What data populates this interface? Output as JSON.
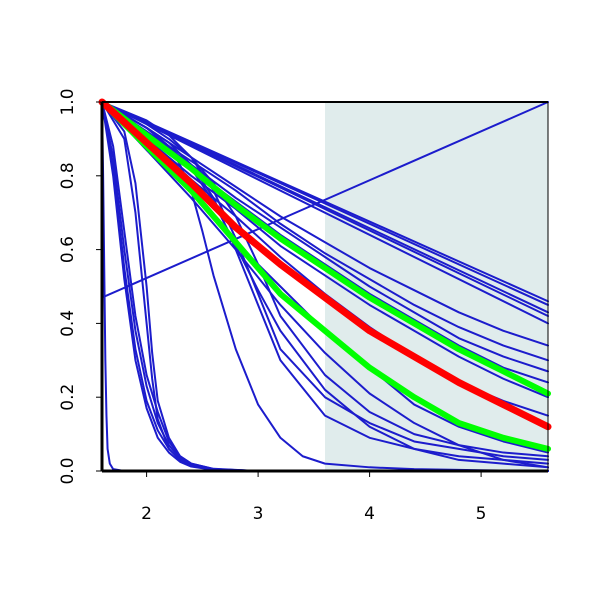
{
  "chart_data": {
    "type": "line",
    "title": "",
    "xlabel": "",
    "ylabel": "",
    "xlim": [
      1.6,
      5.6
    ],
    "ylim": [
      0.0,
      1.0
    ],
    "x_ticks": [
      2,
      3,
      4,
      5
    ],
    "x_tick_labels": [
      "2",
      "3",
      "4",
      "5"
    ],
    "y_ticks": [
      0.0,
      0.2,
      0.4,
      0.6,
      0.8,
      1.0
    ],
    "y_tick_labels": [
      "0.0",
      "0.2",
      "0.4",
      "0.6",
      "0.8",
      "1.0"
    ],
    "grid": false,
    "legend": "none",
    "shaded_region": {
      "x_range": [
        3.6,
        5.6
      ],
      "color": "#e0ecec"
    },
    "colors": {
      "highlight": "#ff0000",
      "bounds": "#00ff00",
      "series": "#1c1ccc",
      "axes": "#000000"
    },
    "series": [
      {
        "role": "highlight",
        "color": "#ff0000",
        "x": [
          1.6,
          2.0,
          2.4,
          2.8,
          3.2,
          3.6,
          4.0,
          4.4,
          4.8,
          5.2,
          5.6
        ],
        "values": [
          1.0,
          0.89,
          0.78,
          0.66,
          0.56,
          0.47,
          0.38,
          0.31,
          0.24,
          0.18,
          0.12
        ]
      },
      {
        "role": "bound",
        "color": "#00ff00",
        "x": [
          1.6,
          2.0,
          2.4,
          2.8,
          3.2,
          3.6,
          4.0,
          4.4,
          4.8,
          5.2,
          5.6
        ],
        "values": [
          1.0,
          0.91,
          0.82,
          0.72,
          0.63,
          0.55,
          0.47,
          0.4,
          0.33,
          0.27,
          0.21
        ]
      },
      {
        "role": "bound",
        "color": "#00ff00",
        "x": [
          1.6,
          2.0,
          2.4,
          2.8,
          3.2,
          3.6,
          4.0,
          4.4,
          4.8,
          5.2,
          5.6
        ],
        "values": [
          1.0,
          0.88,
          0.76,
          0.62,
          0.48,
          0.38,
          0.28,
          0.2,
          0.13,
          0.09,
          0.06
        ]
      },
      {
        "role": "other",
        "x": [
          1.6,
          5.6
        ],
        "values": [
          1.0,
          0.46
        ]
      },
      {
        "role": "other",
        "x": [
          1.6,
          5.6
        ],
        "values": [
          1.0,
          0.45
        ]
      },
      {
        "role": "other",
        "x": [
          1.6,
          5.6
        ],
        "values": [
          1.0,
          0.43
        ]
      },
      {
        "role": "other",
        "x": [
          1.6,
          5.6
        ],
        "values": [
          1.0,
          0.42
        ]
      },
      {
        "role": "other",
        "x": [
          1.6,
          5.6
        ],
        "values": [
          1.0,
          0.4
        ]
      },
      {
        "role": "other",
        "x": [
          1.6,
          2.0,
          2.4,
          2.8,
          3.2,
          3.6,
          4.0,
          4.4,
          4.8,
          5.2,
          5.6
        ],
        "values": [
          1.0,
          0.93,
          0.85,
          0.77,
          0.69,
          0.62,
          0.55,
          0.49,
          0.43,
          0.38,
          0.34
        ]
      },
      {
        "role": "other",
        "x": [
          1.6,
          2.0,
          2.4,
          2.8,
          3.2,
          3.6,
          4.0,
          4.4,
          4.8,
          5.2,
          5.6
        ],
        "values": [
          1.0,
          0.92,
          0.84,
          0.76,
          0.67,
          0.59,
          0.52,
          0.45,
          0.39,
          0.34,
          0.3
        ]
      },
      {
        "role": "other",
        "x": [
          1.6,
          2.0,
          2.4,
          2.8,
          3.2,
          3.6,
          4.0,
          4.4,
          4.8,
          5.2,
          5.6
        ],
        "values": [
          1.0,
          0.92,
          0.83,
          0.74,
          0.66,
          0.58,
          0.5,
          0.43,
          0.36,
          0.31,
          0.27
        ]
      },
      {
        "role": "other",
        "x": [
          1.6,
          2.0,
          2.4,
          2.8,
          3.2,
          3.6,
          4.0,
          4.4,
          4.8,
          5.2,
          5.6
        ],
        "values": [
          1.0,
          0.91,
          0.82,
          0.73,
          0.64,
          0.56,
          0.48,
          0.41,
          0.34,
          0.28,
          0.24
        ]
      },
      {
        "role": "other",
        "x": [
          1.6,
          2.0,
          2.4,
          2.8,
          3.2,
          3.6,
          4.0,
          4.4,
          4.8,
          5.2,
          5.6
        ],
        "values": [
          1.0,
          0.9,
          0.8,
          0.71,
          0.61,
          0.53,
          0.45,
          0.38,
          0.31,
          0.25,
          0.2
        ]
      },
      {
        "role": "other",
        "x": [
          1.6,
          2.0,
          2.4,
          2.8,
          3.2,
          3.6,
          4.0,
          4.4,
          4.8,
          5.2,
          5.6
        ],
        "values": [
          1.0,
          0.9,
          0.79,
          0.69,
          0.58,
          0.48,
          0.39,
          0.31,
          0.24,
          0.19,
          0.15
        ]
      },
      {
        "role": "other",
        "x": [
          1.6,
          2.0,
          2.4,
          2.8,
          3.2,
          3.6,
          4.0,
          4.4,
          4.8,
          5.2,
          5.6
        ],
        "values": [
          1.0,
          0.87,
          0.76,
          0.62,
          0.5,
          0.38,
          0.28,
          0.18,
          0.12,
          0.08,
          0.05
        ]
      },
      {
        "role": "other",
        "x": [
          1.6,
          2.0,
          2.4,
          2.8,
          3.2,
          3.6,
          4.0,
          4.4,
          4.8,
          5.2,
          5.6
        ],
        "values": [
          1.0,
          0.87,
          0.74,
          0.6,
          0.45,
          0.32,
          0.21,
          0.13,
          0.07,
          0.03,
          0.01
        ]
      },
      {
        "role": "other",
        "x": [
          1.6,
          2.0,
          2.2,
          2.4,
          2.6,
          2.8,
          3.0,
          3.2,
          3.6,
          4.0,
          4.4,
          4.8,
          5.2,
          5.6
        ],
        "values": [
          1.0,
          0.93,
          0.89,
          0.83,
          0.74,
          0.6,
          0.45,
          0.3,
          0.15,
          0.09,
          0.06,
          0.04,
          0.03,
          0.02
        ]
      },
      {
        "role": "other",
        "x": [
          1.6,
          2.0,
          2.2,
          2.4,
          2.6,
          2.8,
          3.0,
          3.2,
          3.6,
          4.0,
          4.4,
          4.8,
          5.2,
          5.6
        ],
        "values": [
          1.0,
          0.95,
          0.91,
          0.85,
          0.76,
          0.63,
          0.48,
          0.33,
          0.2,
          0.13,
          0.08,
          0.06,
          0.04,
          0.03
        ]
      },
      {
        "role": "other",
        "x": [
          1.6,
          2.0,
          2.2,
          2.4,
          2.6,
          2.8,
          3.0,
          3.2,
          3.6,
          4.0,
          4.4,
          4.8,
          5.2,
          5.6
        ],
        "values": [
          1.0,
          0.94,
          0.9,
          0.85,
          0.78,
          0.69,
          0.56,
          0.42,
          0.26,
          0.16,
          0.1,
          0.07,
          0.05,
          0.04
        ]
      },
      {
        "role": "other",
        "x": [
          1.6,
          2.0,
          2.2,
          2.4,
          2.6,
          2.8,
          3.0,
          3.2,
          3.6,
          4.0,
          4.4,
          4.8,
          5.2,
          5.6
        ],
        "values": [
          1.0,
          0.93,
          0.88,
          0.82,
          0.73,
          0.61,
          0.49,
          0.38,
          0.22,
          0.12,
          0.06,
          0.03,
          0.02,
          0.01
        ]
      },
      {
        "role": "other",
        "x": [
          1.6,
          2.0,
          2.2,
          2.3,
          2.4,
          2.5,
          2.6,
          2.8,
          3.0,
          3.2,
          3.4,
          3.6,
          4.0,
          4.4,
          5.0,
          5.6
        ],
        "values": [
          1.0,
          0.93,
          0.88,
          0.83,
          0.76,
          0.65,
          0.53,
          0.33,
          0.18,
          0.09,
          0.04,
          0.02,
          0.01,
          0.005,
          0.002,
          0.0
        ]
      },
      {
        "role": "other",
        "x": [
          1.6,
          1.8,
          1.9,
          2.0,
          2.05,
          2.1,
          2.2,
          2.3,
          2.4,
          2.6,
          3.0,
          3.6,
          5.6
        ],
        "values": [
          1.0,
          0.9,
          0.7,
          0.4,
          0.25,
          0.14,
          0.06,
          0.03,
          0.015,
          0.005,
          0.0,
          0.0,
          0.0
        ]
      },
      {
        "role": "other",
        "x": [
          1.6,
          1.8,
          1.9,
          2.0,
          2.05,
          2.1,
          2.2,
          2.3,
          2.4,
          2.6,
          3.0,
          3.6,
          5.6
        ],
        "values": [
          1.0,
          0.92,
          0.78,
          0.5,
          0.32,
          0.19,
          0.09,
          0.04,
          0.02,
          0.006,
          0.0,
          0.0,
          0.0
        ]
      },
      {
        "role": "other",
        "x": [
          1.6,
          1.7,
          1.8,
          1.9,
          2.0,
          2.1,
          2.2,
          2.3,
          2.4,
          2.6,
          3.0,
          3.6,
          5.6
        ],
        "values": [
          1.0,
          0.88,
          0.65,
          0.42,
          0.26,
          0.16,
          0.08,
          0.04,
          0.02,
          0.005,
          0.0,
          0.0,
          0.0
        ]
      },
      {
        "role": "other",
        "x": [
          1.6,
          1.7,
          1.8,
          1.9,
          2.0,
          2.1,
          2.2,
          2.3,
          2.4,
          2.6,
          3.0,
          3.6,
          5.6
        ],
        "values": [
          1.0,
          0.85,
          0.6,
          0.38,
          0.23,
          0.13,
          0.07,
          0.035,
          0.018,
          0.004,
          0.0,
          0.0,
          0.0
        ]
      },
      {
        "role": "other",
        "x": [
          1.6,
          1.7,
          1.8,
          1.9,
          2.0,
          2.1,
          2.2,
          2.3,
          2.4,
          2.6,
          3.0,
          3.6,
          5.6
        ],
        "values": [
          1.0,
          0.82,
          0.55,
          0.33,
          0.19,
          0.11,
          0.06,
          0.03,
          0.015,
          0.003,
          0.0,
          0.0,
          0.0
        ]
      },
      {
        "role": "other",
        "x": [
          1.6,
          1.7,
          1.8,
          1.9,
          2.0,
          2.1,
          2.2,
          2.3,
          2.4,
          2.6,
          3.0,
          3.6,
          5.6
        ],
        "values": [
          1.0,
          0.8,
          0.52,
          0.3,
          0.17,
          0.09,
          0.05,
          0.025,
          0.012,
          0.003,
          0.0,
          0.0,
          0.0
        ]
      },
      {
        "role": "other",
        "x": [
          1.6,
          1.61,
          1.62,
          1.63,
          1.64,
          1.65,
          1.67,
          1.7,
          1.8,
          5.6
        ],
        "values": [
          1.0,
          0.8,
          0.55,
          0.3,
          0.15,
          0.06,
          0.02,
          0.005,
          0.0,
          0.0
        ]
      },
      {
        "role": "other",
        "x": [
          1.6,
          5.6
        ],
        "values": [
          0.47,
          1.0
        ]
      }
    ]
  }
}
